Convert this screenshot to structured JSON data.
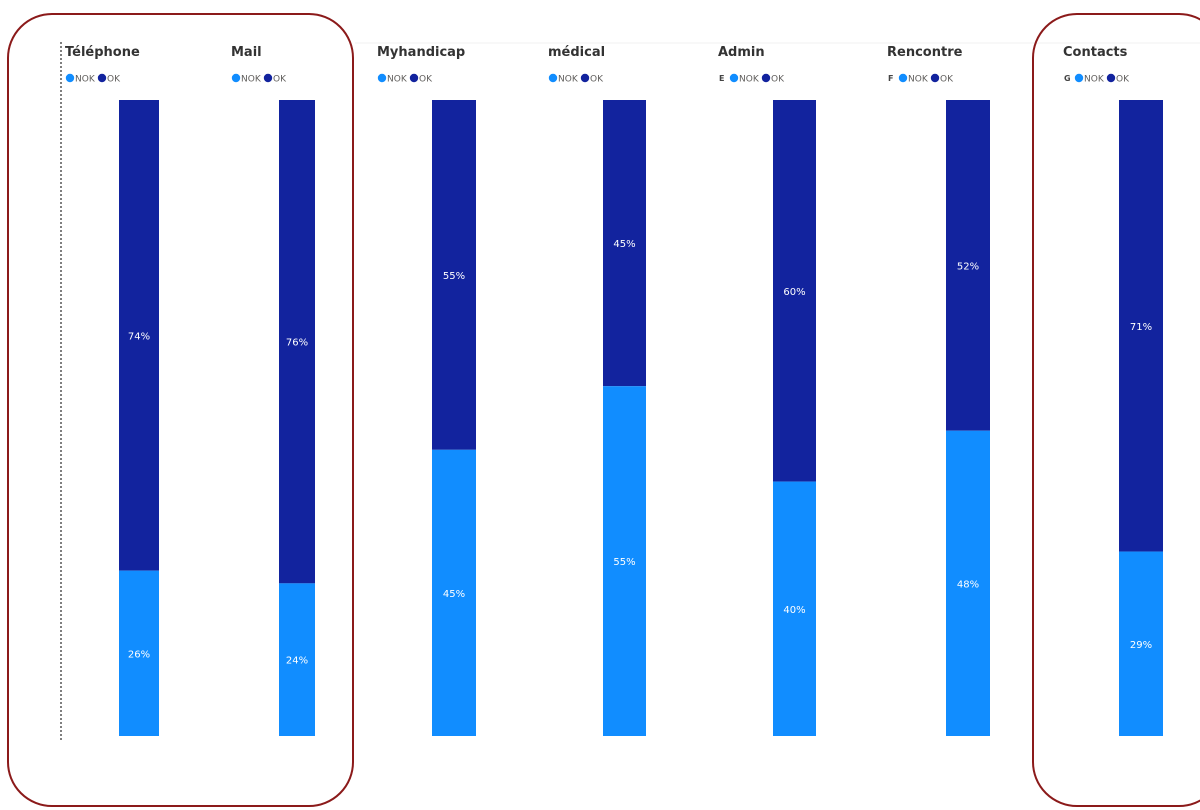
{
  "colors": {
    "nok": "#118dff",
    "ok": "#12239e",
    "highlight": "#8b1a1a",
    "axis": "#555555"
  },
  "legend": {
    "nok_label": "NOK",
    "ok_label": "OK"
  },
  "chart_data": [
    {
      "type": "bar",
      "title": "Téléphone",
      "legend_prefix": "",
      "categories": [
        ""
      ],
      "series": [
        {
          "name": "NOK",
          "values": [
            26
          ]
        },
        {
          "name": "OK",
          "values": [
            74
          ]
        }
      ],
      "data_labels": {
        "NOK": "26%",
        "OK": "74%"
      },
      "stacking": "100%"
    },
    {
      "type": "bar",
      "title": "Mail",
      "legend_prefix": "",
      "categories": [
        ""
      ],
      "series": [
        {
          "name": "NOK",
          "values": [
            24
          ]
        },
        {
          "name": "OK",
          "values": [
            76
          ]
        }
      ],
      "data_labels": {
        "NOK": "24%",
        "OK": "76%"
      },
      "stacking": "100%"
    },
    {
      "type": "bar",
      "title": "Myhandicap",
      "legend_prefix": "",
      "categories": [
        ""
      ],
      "series": [
        {
          "name": "NOK",
          "values": [
            45
          ]
        },
        {
          "name": "OK",
          "values": [
            55
          ]
        }
      ],
      "data_labels": {
        "NOK": "45%",
        "OK": "55%"
      },
      "stacking": "100%"
    },
    {
      "type": "bar",
      "title": "médical",
      "legend_prefix": "",
      "categories": [
        ""
      ],
      "series": [
        {
          "name": "NOK",
          "values": [
            55
          ]
        },
        {
          "name": "OK",
          "values": [
            45
          ]
        }
      ],
      "data_labels": {
        "NOK": "55%",
        "OK": "45%"
      },
      "stacking": "100%"
    },
    {
      "type": "bar",
      "title": "Admin",
      "legend_prefix": "E",
      "categories": [
        ""
      ],
      "series": [
        {
          "name": "NOK",
          "values": [
            40
          ]
        },
        {
          "name": "OK",
          "values": [
            60
          ]
        }
      ],
      "data_labels": {
        "NOK": "40%",
        "OK": "60%"
      },
      "stacking": "100%"
    },
    {
      "type": "bar",
      "title": "Rencontre",
      "legend_prefix": "F",
      "categories": [
        ""
      ],
      "series": [
        {
          "name": "NOK",
          "values": [
            48
          ]
        },
        {
          "name": "OK",
          "values": [
            52
          ]
        }
      ],
      "data_labels": {
        "NOK": "48%",
        "OK": "52%"
      },
      "stacking": "100%"
    },
    {
      "type": "bar",
      "title": "Contacts",
      "legend_prefix": "G",
      "categories": [
        ""
      ],
      "series": [
        {
          "name": "NOK",
          "values": [
            29
          ]
        },
        {
          "name": "OK",
          "values": [
            71
          ]
        }
      ],
      "data_labels": {
        "NOK": "29%",
        "OK": "71%"
      },
      "stacking": "100%"
    }
  ]
}
